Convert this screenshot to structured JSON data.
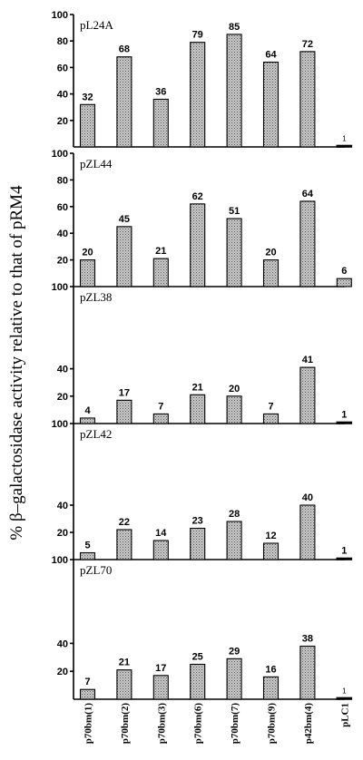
{
  "chart_data": {
    "type": "bar",
    "ylabel": "% β–galactosidase activity relative to that of pRM4",
    "categories": [
      "p70bm(1)",
      "p70bm(2)",
      "p70bm(3)",
      "p70bm(6)",
      "p70bm(7)",
      "p70bm(9)",
      "p42bm(4)",
      "pLC1"
    ],
    "panels": [
      {
        "title": "pL24A",
        "ylim": [
          0,
          100
        ],
        "yticks": [
          "20",
          "40",
          "60",
          "80",
          "100"
        ],
        "values": [
          32,
          68,
          36,
          79,
          85,
          64,
          72,
          1
        ],
        "labels": [
          "32",
          "68",
          "36",
          "79",
          "85",
          "64",
          "72",
          "1"
        ]
      },
      {
        "title": "pZL44",
        "ylim": [
          0,
          100
        ],
        "yticks": [
          "20",
          "40",
          "60",
          "80",
          "100"
        ],
        "values": [
          20,
          45,
          21,
          62,
          51,
          20,
          64,
          6
        ],
        "labels": [
          "20",
          "45",
          "21",
          "62",
          "51",
          "20",
          "64",
          "6"
        ]
      },
      {
        "title": "pZL38",
        "ylim": [
          0,
          100
        ],
        "yticks": [
          "20",
          "40",
          "100"
        ],
        "values": [
          4,
          17,
          7,
          21,
          20,
          7,
          41,
          1
        ],
        "labels": [
          "4",
          "17",
          "7",
          "21",
          "20",
          "7",
          "41",
          "1"
        ]
      },
      {
        "title": "pZL42",
        "ylim": [
          0,
          100
        ],
        "yticks": [
          "20",
          "40",
          "100"
        ],
        "values": [
          5,
          22,
          14,
          23,
          28,
          12,
          40,
          1
        ],
        "labels": [
          "5",
          "22",
          "14",
          "23",
          "28",
          "12",
          "40",
          "1"
        ]
      },
      {
        "title": "pZL70",
        "ylim": [
          0,
          100
        ],
        "yticks": [
          "20",
          "40",
          "100"
        ],
        "values": [
          7,
          21,
          17,
          25,
          29,
          16,
          38,
          1
        ],
        "labels": [
          "7",
          "21",
          "17",
          "25",
          "29",
          "16",
          "38",
          "1"
        ]
      }
    ],
    "grid": false,
    "legend": "none",
    "colors": {
      "bar_fill": "#b8b8b8",
      "bar_stroke": "#000000",
      "axis": "#000000"
    }
  }
}
